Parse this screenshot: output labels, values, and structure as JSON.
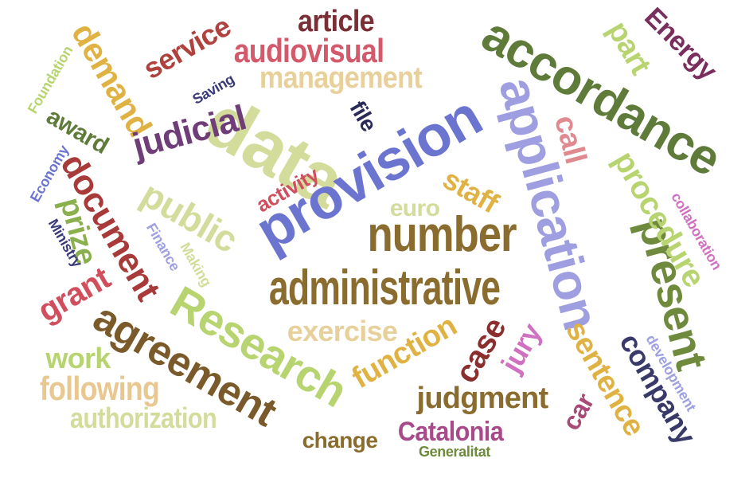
{
  "words": [
    {
      "text": "data",
      "color": "#d4dc9c"
    },
    {
      "text": "provision",
      "color": "#6b75cf"
    },
    {
      "text": "application",
      "color": "#9e9ee0"
    },
    {
      "text": "accordance",
      "color": "#5f7b3a"
    },
    {
      "text": "number",
      "color": "#8a6c2e"
    },
    {
      "text": "administrative",
      "color": "#8a6c2e"
    },
    {
      "text": "Research",
      "color": "#b8d470"
    },
    {
      "text": "agreement",
      "color": "#7a5a2a"
    },
    {
      "text": "present",
      "color": "#6f8a3c"
    },
    {
      "text": "procedure",
      "color": "#b8d470"
    },
    {
      "text": "audiovisual",
      "color": "#d4596a"
    },
    {
      "text": "management",
      "color": "#e8d09a"
    },
    {
      "text": "article",
      "color": "#7a2e36"
    },
    {
      "text": "service",
      "color": "#b0423e"
    },
    {
      "text": "demand",
      "color": "#e0b244"
    },
    {
      "text": "judicial",
      "color": "#6f3d78"
    },
    {
      "text": "public",
      "color": "#d4dc9c"
    },
    {
      "text": "document",
      "color": "#a83a3a"
    },
    {
      "text": "prize",
      "color": "#8ab04e"
    },
    {
      "text": "grant",
      "color": "#d14e5e"
    },
    {
      "text": "award",
      "color": "#5f7b3a"
    },
    {
      "text": "work",
      "color": "#b8d470"
    },
    {
      "text": "following",
      "color": "#e8c890"
    },
    {
      "text": "authorization",
      "color": "#d4dc9c"
    },
    {
      "text": "exercise",
      "color": "#e8d09a"
    },
    {
      "text": "function",
      "color": "#e0b244"
    },
    {
      "text": "judgment",
      "color": "#8a6c2e"
    },
    {
      "text": "Catalonia",
      "color": "#a84a8a"
    },
    {
      "text": "change",
      "color": "#8a6c2e"
    },
    {
      "text": "Generalitat",
      "color": "#6f8a3c"
    },
    {
      "text": "case",
      "color": "#8a2e2e"
    },
    {
      "text": "jury",
      "color": "#d070c0"
    },
    {
      "text": "sentence",
      "color": "#e0b244"
    },
    {
      "text": "company",
      "color": "#3a3a6a"
    },
    {
      "text": "car",
      "color": "#a84a78"
    },
    {
      "text": "development",
      "color": "#9ea0e0"
    },
    {
      "text": "collaboration",
      "color": "#d070c0"
    },
    {
      "text": "call",
      "color": "#e08a90"
    },
    {
      "text": "part",
      "color": "#b8d470"
    },
    {
      "text": "Energy",
      "color": "#7a2e5e"
    },
    {
      "text": "staff",
      "color": "#e0b244"
    },
    {
      "text": "euro",
      "color": "#d4dc9c"
    },
    {
      "text": "activity",
      "color": "#d14e5e"
    },
    {
      "text": "file",
      "color": "#2a2a5a"
    },
    {
      "text": "Saving",
      "color": "#3a3a7a"
    },
    {
      "text": "Foundation",
      "color": "#b8d470"
    },
    {
      "text": "Economy",
      "color": "#6b75cf"
    },
    {
      "text": "Ministry",
      "color": "#3a3a7a"
    },
    {
      "text": "Finance",
      "color": "#9ea0e0"
    },
    {
      "text": "Making",
      "color": "#d4dc9c"
    }
  ]
}
